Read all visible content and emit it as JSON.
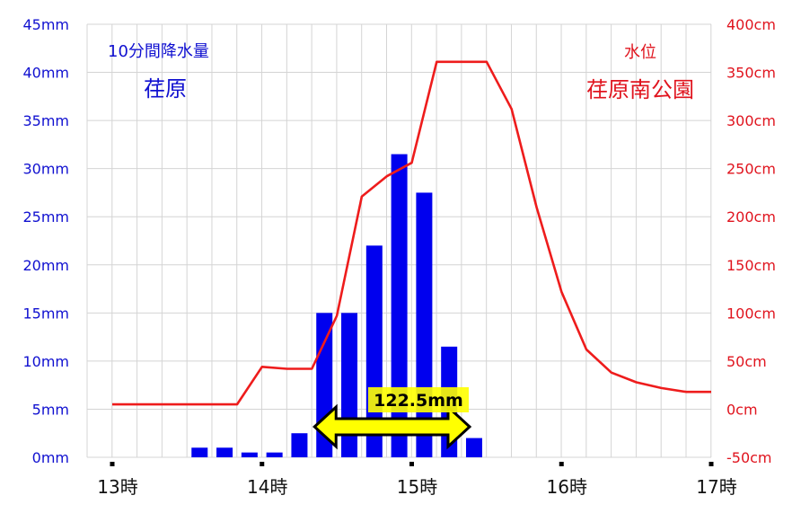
{
  "chart_data": {
    "type": "bar",
    "rain_label": "10分間降水量",
    "rain_station": "荏原",
    "level_label": "水位",
    "level_station": "荏原南公園",
    "total_label": "122.5mm",
    "x_ticks": [
      "13時",
      "14時",
      "15時",
      "16時",
      "17時"
    ],
    "y_left_ticks": [
      "0mm",
      "5mm",
      "10mm",
      "15mm",
      "20mm",
      "25mm",
      "30mm",
      "35mm",
      "40mm",
      "45mm"
    ],
    "y_right_ticks": [
      "-50cm",
      "0cm",
      "50cm",
      "100cm",
      "150cm",
      "200cm",
      "250cm",
      "300cm",
      "350cm",
      "400cm"
    ],
    "y_left_range": [
      0,
      45
    ],
    "y_right_range": [
      -50,
      400
    ],
    "x_range_hours": [
      13,
      17
    ],
    "grid": true,
    "colors": {
      "rain": "#0000ee",
      "level": "#ee1c1c",
      "arrow": "#ffff00",
      "grid": "#d4d4d4"
    },
    "series": [
      {
        "name": "10分間降水量",
        "axis": "left",
        "kind": "bar",
        "times": [
          "13:00",
          "13:10",
          "13:20",
          "13:30",
          "13:40",
          "13:50",
          "14:00",
          "14:10",
          "14:20",
          "14:30",
          "14:40",
          "14:50",
          "15:00",
          "15:10",
          "15:20",
          "15:30",
          "15:40",
          "15:50",
          "16:00",
          "16:10",
          "16:20",
          "16:30",
          "16:40",
          "16:50",
          "17:00"
        ],
        "values": [
          0,
          0,
          0,
          0,
          1,
          1,
          0.5,
          0.5,
          2.5,
          15,
          15,
          22,
          31.5,
          27.5,
          11.5,
          2,
          0,
          0,
          0,
          0,
          0,
          0,
          0,
          0,
          0
        ]
      },
      {
        "name": "水位",
        "axis": "right",
        "kind": "line",
        "times": [
          "13:00",
          "13:10",
          "13:20",
          "13:30",
          "13:40",
          "13:50",
          "14:00",
          "14:10",
          "14:20",
          "14:30",
          "14:40",
          "14:50",
          "15:00",
          "15:10",
          "15:20",
          "15:30",
          "15:40",
          "15:50",
          "16:00",
          "16:10",
          "16:20",
          "16:30",
          "16:40",
          "16:50",
          "17:00"
        ],
        "values": [
          5,
          5,
          5,
          5,
          5,
          5,
          44,
          42,
          42,
          97,
          221,
          242,
          256,
          361,
          361,
          361,
          312,
          210,
          122,
          62,
          38,
          28,
          22,
          18,
          18
        ]
      }
    ],
    "total_span": [
      "14:30",
      "15:30"
    ]
  }
}
